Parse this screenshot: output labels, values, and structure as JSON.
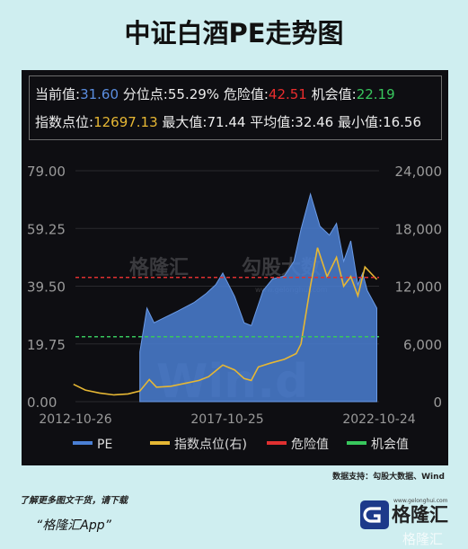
{
  "title": "中证白酒PE走势图",
  "stats": {
    "current_label": "当前值:",
    "current_value": "31.60",
    "percentile_label": "分位点:",
    "percentile_value": "55.29%",
    "danger_label": "危险值:",
    "danger_value": "42.51",
    "chance_label": "机会值:",
    "chance_value": "22.19",
    "index_label": "指数点位:",
    "index_value": "12697.13",
    "max_label": "最大值:",
    "max_value": "71.44",
    "mean_label": "平均值:",
    "mean_value": "32.46",
    "min_label": "最小值:",
    "min_value": "16.56"
  },
  "watermarks": {
    "brand": "格隆汇",
    "brand2": "勾股大数",
    "wind": "Win.d",
    "url": "www.gelonghui.com"
  },
  "source": "数据支持：勾股大数据、Wind",
  "footer": {
    "note": "了解更多图文干货，请下载",
    "app": "“格隆汇App”"
  },
  "logo": {
    "text": "格隆汇",
    "url": "www.gelonghui.com",
    "tag": "格隆汇"
  },
  "colors": {
    "pe": "#4a7fd4",
    "index": "#e6b734",
    "danger": "#e03030",
    "chance": "#38c75d",
    "background": "#0e0e12",
    "page": "#cfeef0"
  },
  "chart_data": {
    "type": "area",
    "x_ticks": [
      "2012-10-26",
      "2017-10-25",
      "2022-10-24"
    ],
    "x_range": [
      "2012-10-26",
      "2023-06-30"
    ],
    "y_left_ticks": [
      "79.00",
      "59.25",
      "39.50",
      "19.75",
      "0.00"
    ],
    "y_left_range": [
      0,
      79
    ],
    "y_right_ticks": [
      "24,000",
      "18,000",
      "12,000",
      "6,000",
      "0"
    ],
    "y_right_range": [
      0,
      24000
    ],
    "legend": [
      "PE",
      "指数点位(右)",
      "危险值",
      "机会值"
    ],
    "legend_position": "bottom",
    "grid": true,
    "series": [
      {
        "name": "PE",
        "axis": "left",
        "style": "area",
        "x": [
          "2015-02",
          "2015-05",
          "2015-08",
          "2016-01",
          "2016-06",
          "2017-01",
          "2017-06",
          "2017-10",
          "2018-01",
          "2018-06",
          "2018-10",
          "2019-01",
          "2019-06",
          "2019-10",
          "2020-03",
          "2020-07",
          "2020-10",
          "2021-02",
          "2021-06",
          "2021-10",
          "2022-01",
          "2022-04",
          "2022-07",
          "2022-10",
          "2022-12",
          "2023-02",
          "2023-06"
        ],
        "values": [
          17,
          32,
          27,
          29,
          31,
          34,
          37,
          40,
          44,
          36,
          27,
          26,
          38,
          42,
          43,
          48,
          59,
          71,
          60,
          57,
          61,
          48,
          55,
          40,
          44,
          38,
          32
        ]
      },
      {
        "name": "指数点位(右)",
        "axis": "right",
        "style": "line",
        "x": [
          "2012-10",
          "2013-03",
          "2013-09",
          "2014-03",
          "2014-09",
          "2015-02",
          "2015-06",
          "2015-09",
          "2016-03",
          "2016-09",
          "2017-03",
          "2017-07",
          "2017-11",
          "2018-01",
          "2018-06",
          "2018-10",
          "2019-01",
          "2019-04",
          "2019-09",
          "2020-03",
          "2020-08",
          "2020-10",
          "2021-02",
          "2021-05",
          "2021-09",
          "2022-01",
          "2022-04",
          "2022-07",
          "2022-10",
          "2023-01",
          "2023-06"
        ],
        "values": [
          1800,
          1200,
          900,
          700,
          800,
          1100,
          2300,
          1500,
          1600,
          1900,
          2200,
          2600,
          3400,
          3800,
          3300,
          2400,
          2200,
          3600,
          4000,
          4400,
          5000,
          6000,
          12000,
          16000,
          13000,
          15000,
          12000,
          13000,
          11000,
          14000,
          12697
        ]
      },
      {
        "name": "危险值",
        "axis": "left",
        "style": "dashed",
        "value": 42.51
      },
      {
        "name": "机会值",
        "axis": "left",
        "style": "dashed",
        "value": 22.19
      }
    ]
  }
}
